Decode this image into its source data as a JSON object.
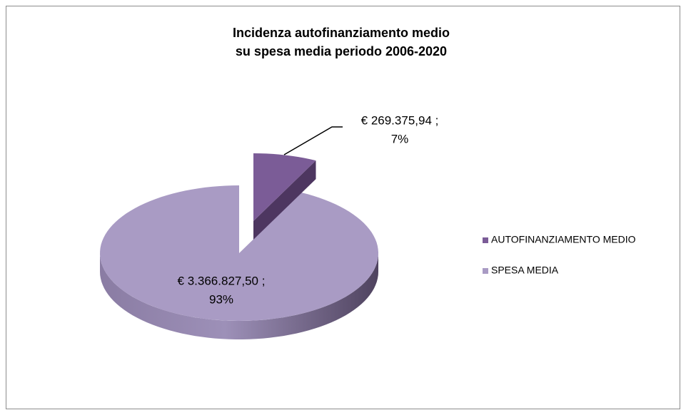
{
  "chart_data": {
    "type": "pie3d",
    "title": [
      "Incidenza autofinanziamento medio",
      "su spesa media periodo 2006-2020"
    ],
    "categories": [
      "AUTOFINANZIAMENTO MEDIO",
      "SPESA MEDIA"
    ],
    "values": [
      269375.94,
      3366827.5
    ],
    "value_labels": [
      "€ 269.375,94 ;",
      "€ 3.366.827,50 ;"
    ],
    "percent_labels": [
      "7%",
      "93%"
    ],
    "colors": [
      "#7b5c97",
      "#a99bc4"
    ],
    "legend": "right"
  }
}
